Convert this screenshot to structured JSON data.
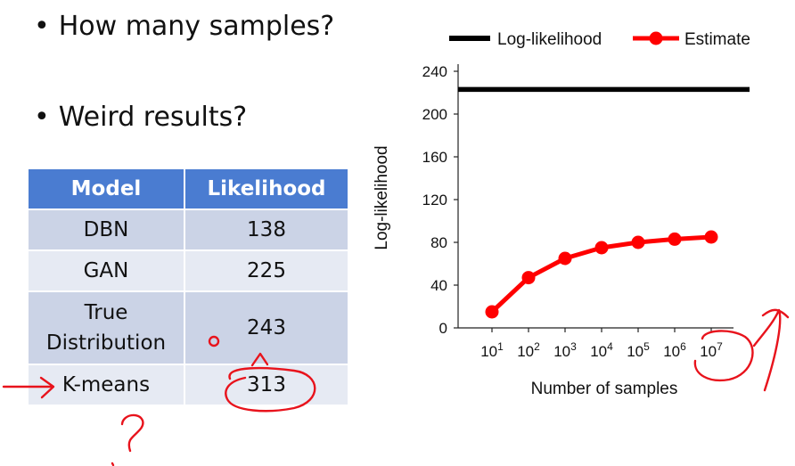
{
  "bullets": [
    "How many samples?",
    "Weird results?"
  ],
  "bullet_marker": "•",
  "table": {
    "headers": [
      "Model",
      "Likelihood"
    ],
    "rows": [
      {
        "model": "DBN",
        "likelihood": "138"
      },
      {
        "model": "GAN",
        "likelihood": "225"
      },
      {
        "model_line1": "True",
        "model_line2": "Distribution",
        "likelihood": "243"
      },
      {
        "model": "K-means",
        "likelihood": "313"
      }
    ],
    "header_color": "#4a7cd1"
  },
  "chart_data": {
    "type": "line",
    "xlabel": "Number of samples",
    "ylabel": "Log-likelihood",
    "ylim": [
      0,
      240
    ],
    "yticks": [
      "0",
      "40",
      "80",
      "120",
      "160",
      "200",
      "240"
    ],
    "xtick_base": "10",
    "xtick_exponents": [
      "1",
      "2",
      "3",
      "4",
      "5",
      "6",
      "7"
    ],
    "legend_placement": "top",
    "series": [
      {
        "name": "Log-likelihood",
        "color": "#000000",
        "values": [
          223,
          223,
          223,
          223,
          223,
          223,
          223
        ]
      },
      {
        "name": "Estimate",
        "color": "#ff0000",
        "values": [
          15,
          47,
          65,
          75,
          80,
          83,
          85
        ]
      }
    ]
  },
  "annotation_color": "#e8131c"
}
